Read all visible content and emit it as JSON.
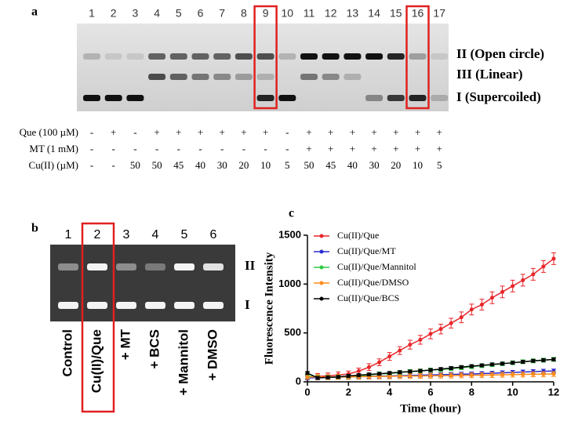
{
  "panel_a": {
    "label": "a",
    "lanes": [
      "1",
      "2",
      "3",
      "4",
      "5",
      "6",
      "7",
      "8",
      "9",
      "10",
      "11",
      "12",
      "13",
      "14",
      "15",
      "16",
      "17"
    ],
    "row_labels": [
      "Que (100 µM)",
      "MT (1 mM)",
      "Cu(II) (µM)"
    ],
    "rows": [
      [
        "-",
        "+",
        "-",
        "+",
        "+",
        "+",
        "+",
        "+",
        "+",
        "-",
        "+",
        "+",
        "+",
        "+",
        "+",
        "+",
        "+"
      ],
      [
        "-",
        "-",
        "-",
        "-",
        "-",
        "-",
        "-",
        "-",
        "-",
        "-",
        "+",
        "+",
        "+",
        "+",
        "+",
        "+",
        "+"
      ],
      [
        "-",
        "-",
        "50",
        "50",
        "45",
        "40",
        "30",
        "20",
        "10",
        "5",
        "50",
        "45",
        "40",
        "30",
        "20",
        "10",
        "5"
      ]
    ],
    "band_labels": [
      "II (Open circle)",
      "III (Linear)",
      "I (Supercoiled)"
    ]
  },
  "panel_b": {
    "label": "b",
    "lanes": [
      "1",
      "2",
      "3",
      "4",
      "5",
      "6"
    ],
    "band_labels": [
      "II",
      "I"
    ],
    "conditions": [
      "Control",
      "Cu(II)/Que",
      "+ MT",
      "+ BCS",
      "+ Mannitol",
      "+ DMSO"
    ]
  },
  "chart_data": {
    "type": "line",
    "label": "c",
    "y_label": "Fluorescence Intensity",
    "x_label": "Time (hour)",
    "xlim": [
      0,
      12
    ],
    "xticks": [
      0,
      2,
      4,
      6,
      8,
      10,
      12
    ],
    "ylim": [
      0,
      1500
    ],
    "yticks": [
      0,
      500,
      1000,
      1500
    ],
    "legend": "upper left",
    "x": [
      0,
      0.5,
      1,
      1.5,
      2,
      2.5,
      3,
      3.5,
      4,
      4.5,
      5,
      5.5,
      6,
      6.5,
      7,
      7.5,
      8,
      8.5,
      9,
      9.5,
      10,
      10.5,
      11,
      11.5,
      12
    ],
    "series": [
      {
        "name": "Cu(II)/Que",
        "color": "#e8262a",
        "values": [
          50,
          55,
          60,
          70,
          80,
          110,
          150,
          200,
          260,
          320,
          380,
          430,
          490,
          540,
          600,
          660,
          740,
          790,
          860,
          920,
          980,
          1040,
          1100,
          1180,
          1260
        ],
        "errors": [
          30,
          30,
          30,
          30,
          30,
          30,
          35,
          35,
          40,
          40,
          45,
          45,
          50,
          50,
          50,
          55,
          55,
          55,
          60,
          60,
          60,
          60,
          60,
          60,
          60
        ]
      },
      {
        "name": "Cu(II)/Que/MT",
        "color": "#2a2ad0",
        "values": [
          40,
          42,
          45,
          48,
          50,
          52,
          55,
          58,
          60,
          63,
          65,
          68,
          70,
          73,
          75,
          78,
          80,
          84,
          88,
          92,
          96,
          100,
          104,
          108,
          110
        ],
        "errors": [
          20,
          20,
          20,
          20,
          20,
          20,
          20,
          20,
          20,
          20,
          20,
          20,
          20,
          20,
          20,
          20,
          20,
          20,
          20,
          20,
          20,
          20,
          20,
          20,
          20
        ]
      },
      {
        "name": "Cu(II)/Que/Mannitol",
        "color": "#2ecc40",
        "values": [
          60,
          45,
          45,
          50,
          55,
          60,
          70,
          80,
          85,
          95,
          105,
          110,
          120,
          125,
          135,
          145,
          155,
          165,
          175,
          185,
          195,
          205,
          215,
          222,
          230
        ],
        "errors": [
          20,
          20,
          20,
          20,
          20,
          20,
          20,
          20,
          20,
          20,
          20,
          20,
          20,
          20,
          20,
          20,
          20,
          20,
          20,
          20,
          20,
          20,
          20,
          20,
          20
        ]
      },
      {
        "name": "Cu(II)/Que/DMSO",
        "color": "#ff8c1a",
        "values": [
          50,
          48,
          48,
          50,
          50,
          52,
          54,
          55,
          56,
          58,
          59,
          60,
          62,
          63,
          64,
          66,
          67,
          68,
          70,
          72,
          74,
          75,
          77,
          78,
          80
        ],
        "errors": [
          25,
          25,
          25,
          25,
          25,
          25,
          25,
          25,
          25,
          25,
          25,
          25,
          25,
          25,
          25,
          25,
          25,
          25,
          25,
          25,
          25,
          25,
          25,
          25,
          25
        ]
      },
      {
        "name": "Cu(II)/Que/BCS",
        "color": "#000000",
        "values": [
          90,
          40,
          45,
          50,
          60,
          68,
          75,
          82,
          90,
          98,
          105,
          112,
          120,
          130,
          140,
          150,
          160,
          168,
          178,
          186,
          195,
          205,
          215,
          222,
          230
        ],
        "errors": [
          15,
          15,
          15,
          15,
          15,
          15,
          15,
          15,
          15,
          15,
          15,
          15,
          15,
          15,
          15,
          15,
          15,
          15,
          15,
          15,
          15,
          15,
          15,
          15,
          15
        ]
      }
    ]
  }
}
